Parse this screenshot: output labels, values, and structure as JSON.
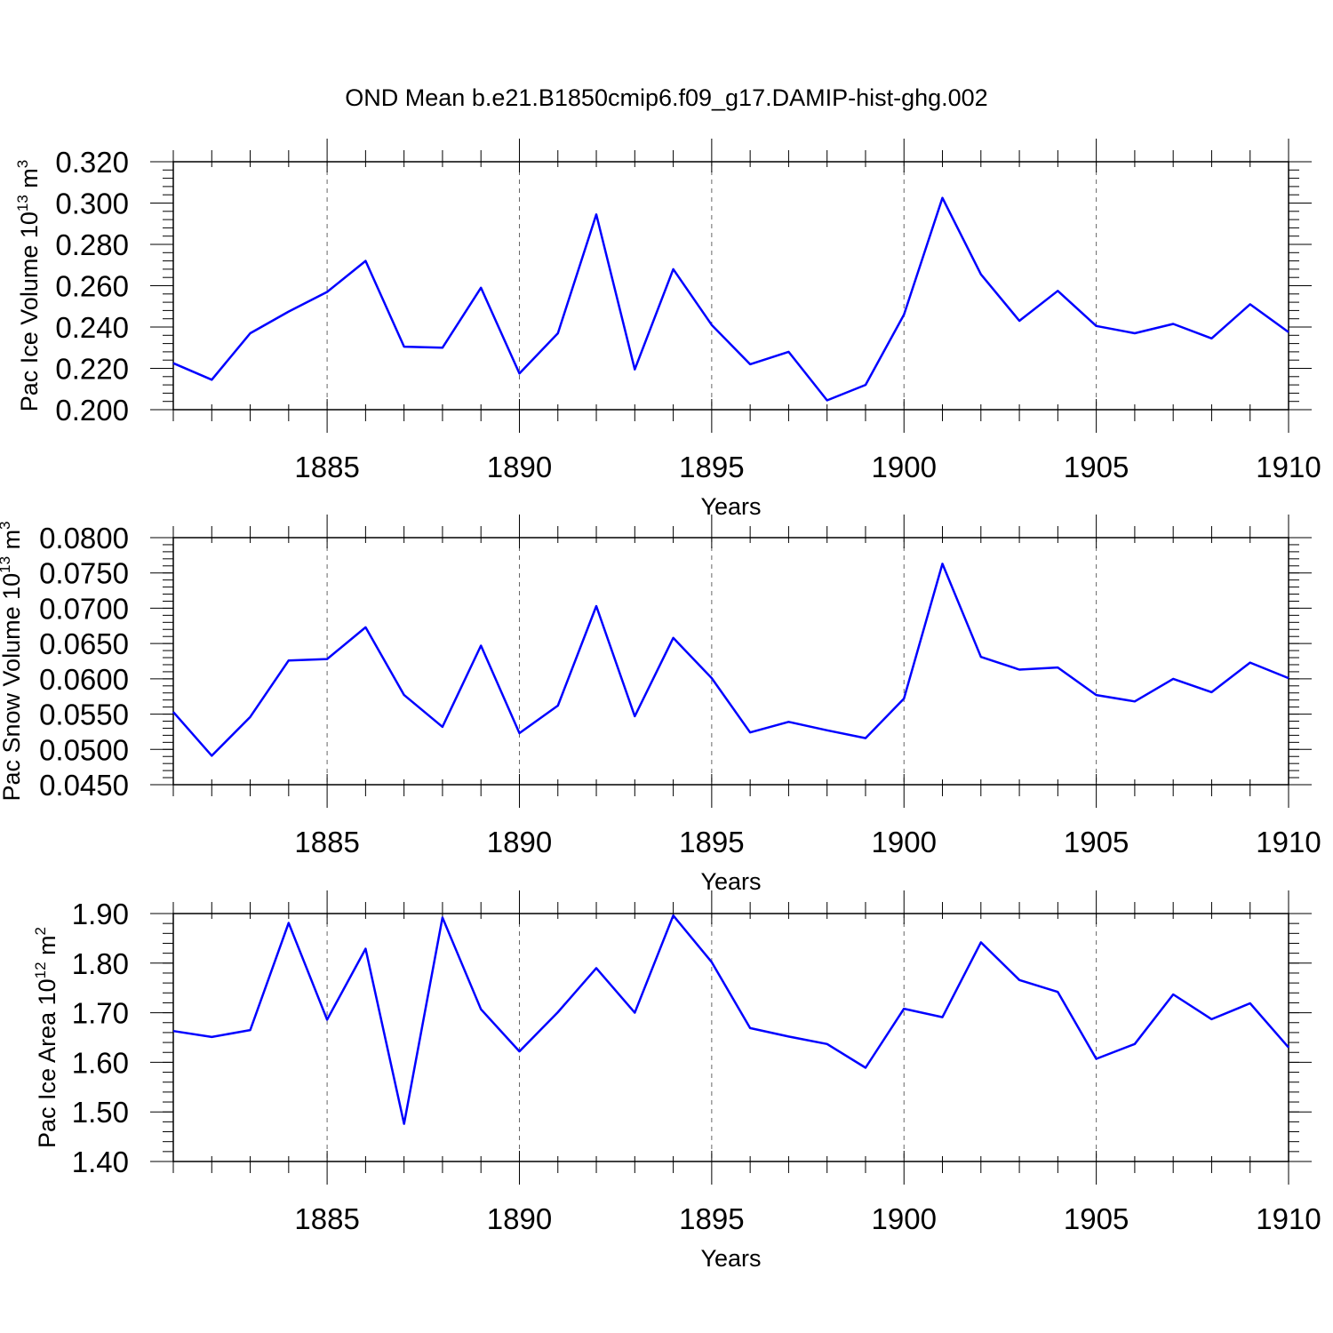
{
  "figure": {
    "title": "OND Mean b.e21.B1850cmip6.f09_g17.DAMIP-hist-ghg.002",
    "line_color": "#0000ff"
  },
  "chart_data": [
    {
      "type": "line",
      "title": "",
      "xlabel": "Years",
      "ylabel": "Pac Ice Volume 10",
      "ylabel_exp": "13",
      "ylabel_unit": " m",
      "ylabel_unit_exp": "3",
      "xlim": [
        1881,
        1910
      ],
      "ylim": [
        0.2,
        0.32
      ],
      "x_ticks": [
        1885,
        1890,
        1895,
        1900,
        1905,
        1910
      ],
      "x_tick_labels": [
        "1885",
        "1890",
        "1895",
        "1900",
        "1905",
        "1910"
      ],
      "y_ticks": [
        0.2,
        0.22,
        0.24,
        0.26,
        0.28,
        0.3,
        0.32
      ],
      "y_tick_labels": [
        "0.200",
        "0.220",
        "0.240",
        "0.260",
        "0.280",
        "0.300",
        "0.320"
      ],
      "y_minor_step": 0.004,
      "grid": "x-dashed",
      "series": [
        {
          "name": "Pac Ice Volume",
          "x": [
            1881,
            1882,
            1883,
            1884,
            1885,
            1886,
            1887,
            1888,
            1889,
            1890,
            1891,
            1892,
            1893,
            1894,
            1895,
            1896,
            1897,
            1898,
            1899,
            1900,
            1901,
            1902,
            1903,
            1904,
            1905,
            1906,
            1907,
            1908,
            1909,
            1910
          ],
          "values": [
            0.2225,
            0.2145,
            0.237,
            0.2475,
            0.257,
            0.272,
            0.2305,
            0.23,
            0.259,
            0.2175,
            0.237,
            0.2945,
            0.2195,
            0.268,
            0.241,
            0.222,
            0.228,
            0.2045,
            0.212,
            0.246,
            0.3025,
            0.2655,
            0.243,
            0.2575,
            0.2405,
            0.237,
            0.2415,
            0.2345,
            0.251,
            0.2375
          ]
        }
      ]
    },
    {
      "type": "line",
      "title": "",
      "xlabel": "Years",
      "ylabel": "Pac Snow Volume 10",
      "ylabel_exp": "13",
      "ylabel_unit": " m",
      "ylabel_unit_exp": "3",
      "xlim": [
        1881,
        1910
      ],
      "ylim": [
        0.045,
        0.08
      ],
      "x_ticks": [
        1885,
        1890,
        1895,
        1900,
        1905,
        1910
      ],
      "x_tick_labels": [
        "1885",
        "1890",
        "1895",
        "1900",
        "1905",
        "1910"
      ],
      "y_ticks": [
        0.045,
        0.05,
        0.055,
        0.06,
        0.065,
        0.07,
        0.075,
        0.08
      ],
      "y_tick_labels": [
        "0.0450",
        "0.0500",
        "0.0550",
        "0.0600",
        "0.0650",
        "0.0700",
        "0.0750",
        "0.0800"
      ],
      "y_minor_step": 0.001,
      "grid": "x-dashed",
      "series": [
        {
          "name": "Pac Snow Volume",
          "x": [
            1881,
            1882,
            1883,
            1884,
            1885,
            1886,
            1887,
            1888,
            1889,
            1890,
            1891,
            1892,
            1893,
            1894,
            1895,
            1896,
            1897,
            1898,
            1899,
            1900,
            1901,
            1902,
            1903,
            1904,
            1905,
            1906,
            1907,
            1908,
            1909,
            1910
          ],
          "values": [
            0.0553,
            0.0491,
            0.0546,
            0.0626,
            0.0628,
            0.0673,
            0.0577,
            0.0532,
            0.0647,
            0.0523,
            0.0562,
            0.0703,
            0.0547,
            0.0658,
            0.0601,
            0.0524,
            0.0539,
            0.0527,
            0.0516,
            0.0572,
            0.0763,
            0.0631,
            0.0613,
            0.0616,
            0.0577,
            0.0568,
            0.06,
            0.0581,
            0.0623,
            0.0601
          ]
        }
      ]
    },
    {
      "type": "line",
      "title": "",
      "xlabel": "Years",
      "ylabel": "Pac Ice Area 10",
      "ylabel_exp": "12",
      "ylabel_unit": " m",
      "ylabel_unit_exp": "2",
      "xlim": [
        1881,
        1910
      ],
      "ylim": [
        1.4,
        1.9
      ],
      "x_ticks": [
        1885,
        1890,
        1895,
        1900,
        1905,
        1910
      ],
      "x_tick_labels": [
        "1885",
        "1890",
        "1895",
        "1900",
        "1905",
        "1910"
      ],
      "y_ticks": [
        1.4,
        1.5,
        1.6,
        1.7,
        1.8,
        1.9
      ],
      "y_tick_labels": [
        "1.40",
        "1.50",
        "1.60",
        "1.70",
        "1.80",
        "1.90"
      ],
      "y_minor_step": 0.02,
      "grid": "x-dashed",
      "series": [
        {
          "name": "Pac Ice Area",
          "x": [
            1881,
            1882,
            1883,
            1884,
            1885,
            1886,
            1887,
            1888,
            1889,
            1890,
            1891,
            1892,
            1893,
            1894,
            1895,
            1896,
            1897,
            1898,
            1899,
            1900,
            1901,
            1902,
            1903,
            1904,
            1905,
            1906,
            1907,
            1908,
            1909,
            1910
          ],
          "values": [
            1.663,
            1.651,
            1.665,
            1.881,
            1.686,
            1.829,
            1.476,
            1.892,
            1.707,
            1.622,
            1.701,
            1.79,
            1.7,
            1.896,
            1.802,
            1.669,
            1.652,
            1.637,
            1.589,
            1.708,
            1.691,
            1.842,
            1.766,
            1.742,
            1.607,
            1.637,
            1.737,
            1.687,
            1.719,
            1.63
          ]
        }
      ]
    }
  ]
}
